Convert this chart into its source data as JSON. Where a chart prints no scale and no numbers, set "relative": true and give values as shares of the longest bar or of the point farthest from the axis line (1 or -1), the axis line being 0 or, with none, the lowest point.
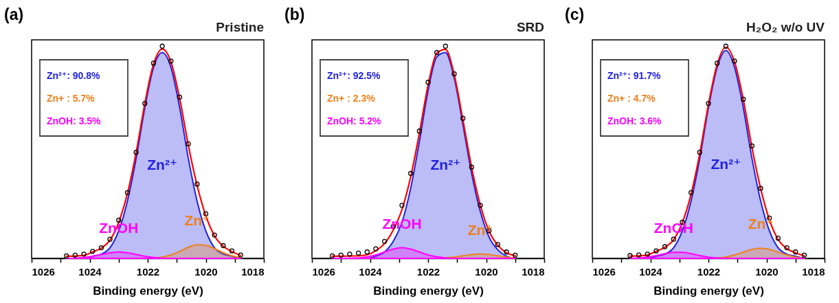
{
  "chart_data": [
    {
      "type": "line",
      "title": "(a)",
      "subtitle": "Pristine",
      "xlabel": "Binding energy (eV)",
      "relative": true,
      "xlim": [
        1026,
        1018
      ],
      "xticks": [
        1026,
        {
          "value": 1025,
          "label": null
        },
        1024,
        {
          "value": 1023,
          "label": null
        },
        1022,
        {
          "value": 1021,
          "label": null
        },
        1020,
        {
          "value": 1019,
          "label": null
        },
        1018
      ],
      "x": [
        1024.8,
        1024.5,
        1024.2,
        1023.9,
        1023.6,
        1023.3,
        1023.0,
        1022.7,
        1022.4,
        1022.1,
        1021.8,
        1021.5,
        1021.2,
        1020.9,
        1020.6,
        1020.3,
        1020.0,
        1019.7,
        1019.4,
        1019.1,
        1018.8
      ],
      "series": [
        {
          "type": "area",
          "color": "#2020e0",
          "values": [
            0,
            0,
            0,
            0.01,
            0.02,
            0.05,
            0.13,
            0.27,
            0.47,
            0.71,
            0.9,
            0.97,
            0.9,
            0.71,
            0.47,
            0.27,
            0.13,
            0.05,
            0.02,
            0.01,
            0
          ]
        },
        {
          "type": "area",
          "color": "#f07f1a",
          "values": [
            0,
            0,
            0,
            0,
            0,
            0,
            0,
            0,
            0,
            0,
            0.002,
            0.006,
            0.016,
            0.033,
            0.052,
            0.064,
            0.061,
            0.046,
            0.027,
            0.012,
            0.004
          ]
        },
        {
          "type": "area",
          "color": "#ff00ff",
          "values": [
            0,
            0.001,
            0.004,
            0.01,
            0.018,
            0.026,
            0.03,
            0.026,
            0.018,
            0.01,
            0.004,
            0.001,
            0,
            0,
            0,
            0,
            0,
            0,
            0,
            0,
            0
          ]
        },
        {
          "type": "line",
          "color": "#ff0000",
          "values": [
            0.01,
            0.011,
            0.014,
            0.03,
            0.048,
            0.086,
            0.17,
            0.306,
            0.498,
            0.73,
            0.916,
            0.987,
            0.926,
            0.753,
            0.532,
            0.344,
            0.201,
            0.106,
            0.057,
            0.032,
            0.014
          ]
        },
        {
          "type": "scatter",
          "marker": "circle",
          "color": "#000000",
          "values": [
            0.012,
            0.015,
            0.02,
            0.033,
            0.05,
            0.09,
            0.18,
            0.31,
            0.5,
            0.73,
            0.92,
            1.0,
            0.93,
            0.76,
            0.54,
            0.35,
            0.21,
            0.11,
            0.06,
            0.035,
            0.016
          ]
        }
      ],
      "annotations": [
        "Zn²⁺: 90.8%",
        "Zn+  :  5.7%",
        "ZnOH:  3.5%",
        "Zn²⁺",
        "Zn⁺",
        "ZnOH"
      ]
    },
    {
      "type": "line",
      "title": "(b)",
      "subtitle": "SRD",
      "xlabel": "Binding energy (eV)",
      "relative": true,
      "xlim": [
        1026,
        1018
      ],
      "xticks": [
        1026,
        {
          "value": 1025,
          "label": null
        },
        1024,
        {
          "value": 1023,
          "label": null
        },
        1022,
        {
          "value": 1021,
          "label": null
        },
        1020,
        {
          "value": 1019,
          "label": null
        },
        1018
      ],
      "x": [
        1025.3,
        1025.0,
        1024.7,
        1024.4,
        1024.1,
        1023.8,
        1023.5,
        1023.2,
        1022.9,
        1022.6,
        1022.3,
        1022.0,
        1021.7,
        1021.4,
        1021.1,
        1020.8,
        1020.5,
        1020.2,
        1019.9,
        1019.6,
        1019.3,
        1019.0
      ],
      "series": [
        {
          "type": "area",
          "color": "#2020e0",
          "values": [
            0,
            0,
            0,
            0,
            0,
            0.01,
            0.03,
            0.08,
            0.17,
            0.33,
            0.55,
            0.79,
            0.95,
            0.97,
            0.85,
            0.63,
            0.4,
            0.22,
            0.1,
            0.04,
            0.01,
            0
          ]
        },
        {
          "type": "area",
          "color": "#f07f1a",
          "values": [
            0,
            0,
            0,
            0,
            0,
            0,
            0,
            0,
            0,
            0,
            0,
            0,
            0,
            0.003,
            0.006,
            0.012,
            0.018,
            0.02,
            0.018,
            0.012,
            0.006,
            0.003
          ]
        },
        {
          "type": "area",
          "color": "#ff00ff",
          "values": [
            0,
            0,
            0.001,
            0.002,
            0.007,
            0.016,
            0.03,
            0.044,
            0.05,
            0.044,
            0.03,
            0.016,
            0.007,
            0.002,
            0,
            0,
            0,
            0,
            0,
            0,
            0,
            0
          ]
        },
        {
          "type": "line",
          "color": "#ff0000",
          "values": [
            0.01,
            0.01,
            0.011,
            0.012,
            0.017,
            0.036,
            0.07,
            0.134,
            0.23,
            0.384,
            0.59,
            0.816,
            0.967,
            0.985,
            0.866,
            0.652,
            0.428,
            0.25,
            0.128,
            0.062,
            0.026,
            0.013
          ]
        },
        {
          "type": "scatter",
          "marker": "circle",
          "color": "#000000",
          "values": [
            0.012,
            0.015,
            0.02,
            0.025,
            0.03,
            0.045,
            0.08,
            0.15,
            0.25,
            0.4,
            0.6,
            0.83,
            0.97,
            1.0,
            0.87,
            0.66,
            0.43,
            0.25,
            0.13,
            0.065,
            0.03,
            0.015
          ]
        }
      ],
      "annotations": [
        "Zn²⁺: 92.5%",
        "Zn+  :  2.3%",
        "ZnOH:  5.2%",
        "Zn²⁺",
        "Zn⁺",
        "ZnOH"
      ]
    },
    {
      "type": "line",
      "title": "(c)",
      "subtitle": "H₂O₂ w/o UV",
      "xlabel": "Binding energy (eV)",
      "relative": true,
      "xlim": [
        1026,
        1018
      ],
      "xticks": [
        1026,
        {
          "value": 1025,
          "label": null
        },
        1024,
        {
          "value": 1023,
          "label": null
        },
        1022,
        {
          "value": 1021,
          "label": null
        },
        1020,
        {
          "value": 1019,
          "label": null
        },
        1018
      ],
      "x": [
        1024.7,
        1024.4,
        1024.1,
        1023.8,
        1023.5,
        1023.2,
        1022.9,
        1022.6,
        1022.3,
        1022.0,
        1021.7,
        1021.4,
        1021.1,
        1020.8,
        1020.5,
        1020.2,
        1019.9,
        1019.6,
        1019.3,
        1019.0,
        1018.7
      ],
      "series": [
        {
          "type": "area",
          "color": "#2020e0",
          "values": [
            0,
            0,
            0,
            0.01,
            0.02,
            0.05,
            0.13,
            0.27,
            0.47,
            0.71,
            0.9,
            0.98,
            0.9,
            0.71,
            0.47,
            0.27,
            0.13,
            0.05,
            0.02,
            0.01,
            0
          ]
        },
        {
          "type": "area",
          "color": "#f07f1a",
          "values": [
            0,
            0,
            0,
            0,
            0,
            0,
            0,
            0,
            0,
            0,
            0.002,
            0.006,
            0.016,
            0.029,
            0.042,
            0.048,
            0.042,
            0.029,
            0.016,
            0.006,
            0.002
          ]
        },
        {
          "type": "area",
          "color": "#ff00ff",
          "values": [
            0.001,
            0.002,
            0.006,
            0.013,
            0.022,
            0.028,
            0.028,
            0.022,
            0.013,
            0.006,
            0.002,
            0,
            0,
            0,
            0,
            0,
            0,
            0,
            0,
            0,
            0
          ]
        },
        {
          "type": "line",
          "color": "#ff0000",
          "values": [
            0.011,
            0.012,
            0.016,
            0.033,
            0.052,
            0.088,
            0.168,
            0.302,
            0.493,
            0.726,
            0.914,
            0.996,
            0.926,
            0.749,
            0.522,
            0.328,
            0.182,
            0.089,
            0.046,
            0.026,
            0.012
          ]
        },
        {
          "type": "scatter",
          "marker": "circle",
          "color": "#000000",
          "values": [
            0.013,
            0.016,
            0.02,
            0.035,
            0.055,
            0.09,
            0.17,
            0.31,
            0.5,
            0.73,
            0.92,
            1.0,
            0.93,
            0.75,
            0.53,
            0.33,
            0.19,
            0.095,
            0.05,
            0.03,
            0.015
          ]
        }
      ],
      "annotations": [
        "Zn²⁺: 91.7%",
        "Zn+  :  4.7%",
        "ZnOH:  3.6%",
        "Zn²⁺",
        "Zn⁺",
        "ZnOH"
      ]
    }
  ]
}
